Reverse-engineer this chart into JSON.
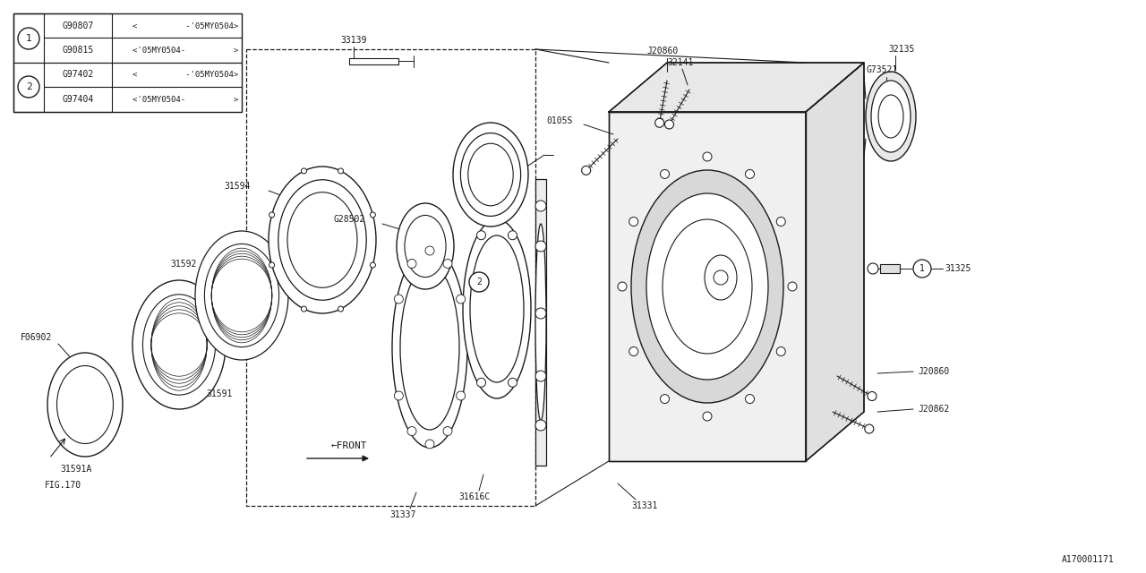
{
  "bg_color": "#ffffff",
  "line_color": "#1a1a1a",
  "fig_id": "A170001171",
  "legend": {
    "rows": [
      {
        "symbol": "1",
        "part": "G90807",
        "desc": "<          -'05MY0504>"
      },
      {
        "symbol": "1",
        "part": "G90815",
        "desc": "<'05MY0504-          >"
      },
      {
        "symbol": "2",
        "part": "G97402",
        "desc": "<          -'05MY0504>"
      },
      {
        "symbol": "2",
        "part": "G97404",
        "desc": "<'05MY0504-          >"
      }
    ]
  }
}
